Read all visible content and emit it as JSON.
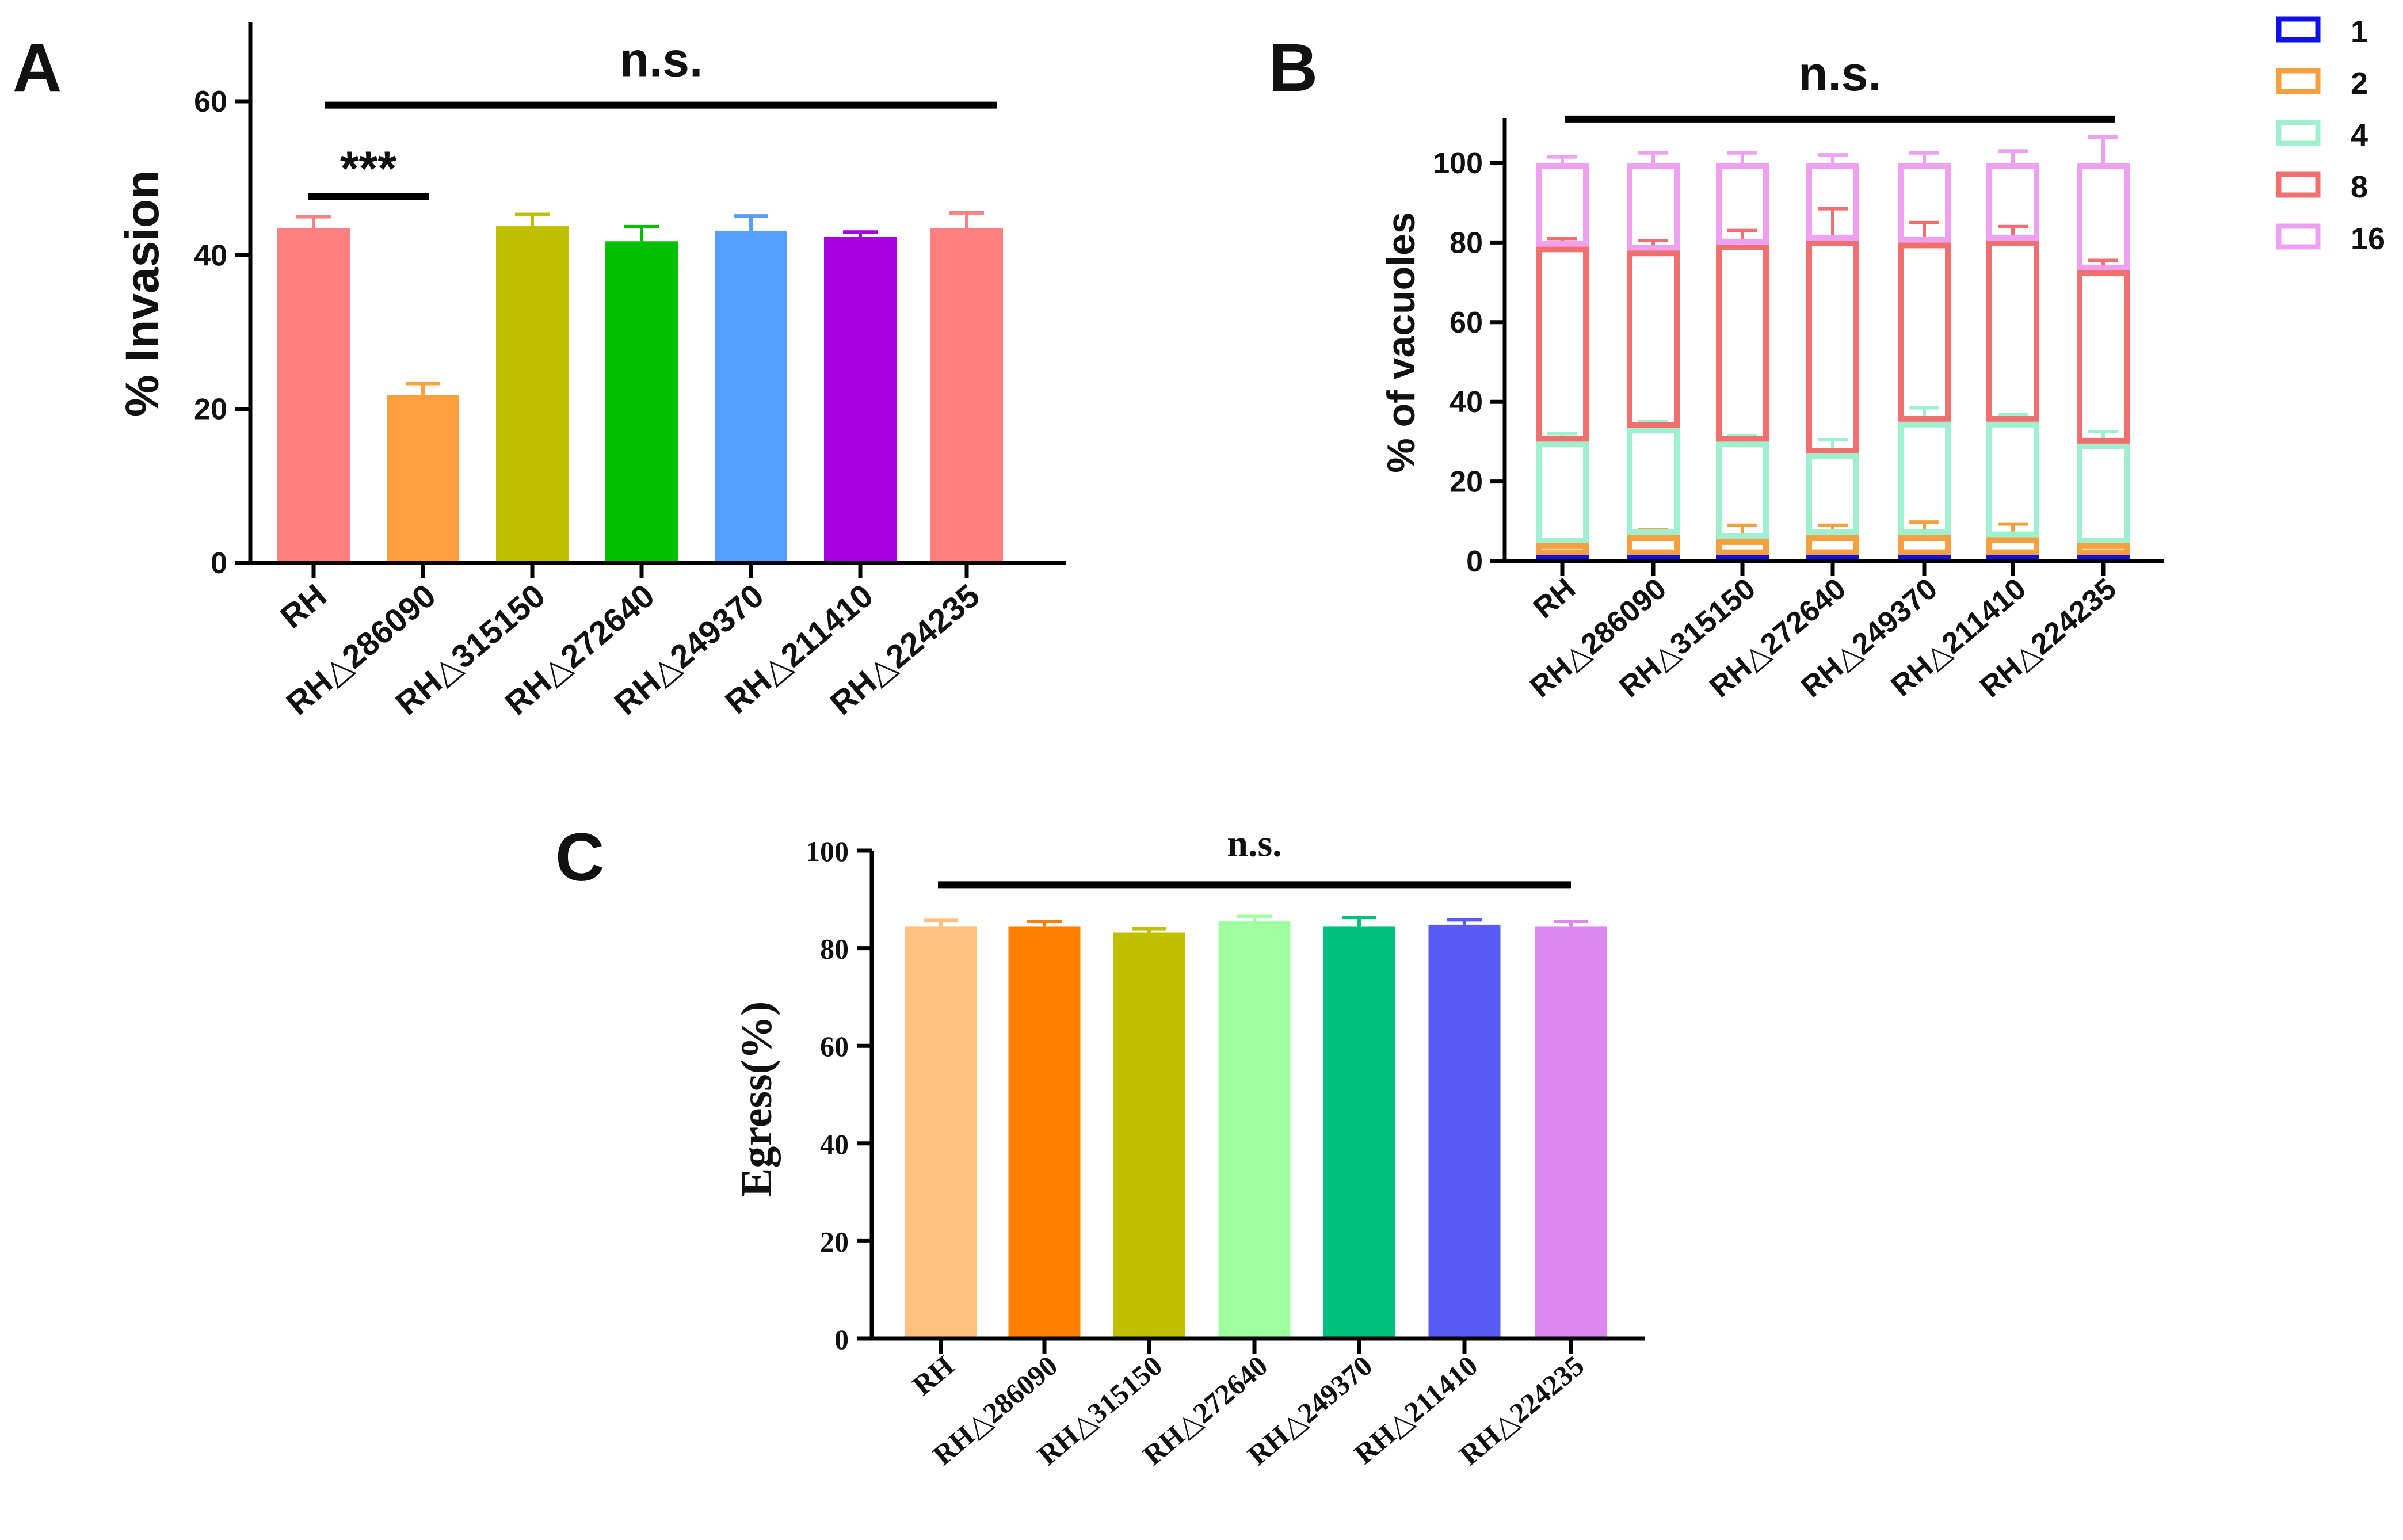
{
  "panels": {
    "A": {
      "label": "A"
    },
    "B": {
      "label": "B"
    },
    "C": {
      "label": "C"
    }
  },
  "chart_data": [
    {
      "id": "A",
      "type": "bar",
      "title": "",
      "xlabel": "",
      "ylabel": "% Invasion",
      "ylim": [
        0,
        70
      ],
      "yticks": [
        0,
        20,
        40,
        60
      ],
      "categories": [
        "RH",
        "RH△286090",
        "RH△315150",
        "RH△272640",
        "RH△249370",
        "RH△211410",
        "RH△224235"
      ],
      "values": [
        43.5,
        21.8,
        43.8,
        41.8,
        43.1,
        42.4,
        43.5
      ],
      "errors": [
        1.5,
        1.5,
        1.5,
        1.9,
        2.0,
        0.6,
        2.0
      ],
      "colors": [
        "#ff8080",
        "#ffa040",
        "#c0c000",
        "#00c000",
        "#55a0ff",
        "#a800e0",
        "#ff8080"
      ],
      "annotations": [
        {
          "text": "n.s.",
          "from": 0,
          "to": 6,
          "y": 59.5
        },
        {
          "text": "***",
          "from": 0,
          "to": 1,
          "y": 47.6
        }
      ]
    },
    {
      "id": "B",
      "type": "bar",
      "stacked": true,
      "title": "",
      "xlabel": "",
      "ylabel": "% of vacuoles",
      "ylim": [
        0,
        110
      ],
      "yticks": [
        0,
        20,
        40,
        60,
        80,
        100
      ],
      "categories": [
        "RH",
        "RH△286090",
        "RH△315150",
        "RH△272640",
        "RH△249370",
        "RH△211410",
        "RH△224235"
      ],
      "series": [
        {
          "name": "1",
          "color": "#1010e8",
          "cumulative": [
            1.5,
            1.5,
            1.5,
            1.5,
            1.5,
            1.5,
            1.5
          ],
          "errors": [
            0.8,
            0.5,
            0.8,
            0.8,
            0.8,
            0.8,
            0.8
          ]
        },
        {
          "name": "2",
          "color": "#f5a040",
          "cumulative": [
            4.5,
            6.5,
            5.5,
            6.5,
            6.5,
            6.0,
            4.5
          ],
          "errors": [
            1.0,
            1.3,
            3.5,
            2.5,
            3.3,
            3.3,
            1.0
          ]
        },
        {
          "name": "4",
          "color": "#a0f0d0",
          "cumulative": [
            30.0,
            33.5,
            30.0,
            27.0,
            35.0,
            35.0,
            29.5
          ],
          "errors": [
            2.0,
            1.5,
            1.5,
            3.5,
            3.5,
            1.8,
            3.0
          ]
        },
        {
          "name": "8",
          "color": "#f07070",
          "cumulative": [
            79.0,
            78.0,
            79.5,
            80.5,
            80.0,
            80.5,
            73.0
          ],
          "errors": [
            2.0,
            2.5,
            3.5,
            8.0,
            5.0,
            3.5,
            2.5
          ]
        },
        {
          "name": "16",
          "color": "#f0a0f0",
          "cumulative": [
            100,
            100,
            100,
            100,
            100,
            100,
            100
          ],
          "errors": [
            1.5,
            2.5,
            2.5,
            2.0,
            2.5,
            3.0,
            6.5
          ]
        }
      ],
      "legend": {
        "position": "top-right",
        "entries": [
          "1",
          "2",
          "4",
          "8",
          "16"
        ]
      },
      "annotations": [
        {
          "text": "n.s.",
          "from": 0,
          "to": 6,
          "y": 111
        }
      ]
    },
    {
      "id": "C",
      "type": "bar",
      "title": "",
      "xlabel": "",
      "ylabel": "Egress(%)",
      "ylim": [
        0,
        100
      ],
      "yticks": [
        0,
        20,
        40,
        60,
        80,
        100
      ],
      "categories": [
        "RH",
        "RH△286090",
        "RH△315150",
        "RH△272640",
        "RH△249370",
        "RH△211410",
        "RH△224235"
      ],
      "values": [
        84.5,
        84.5,
        83.2,
        85.5,
        84.5,
        84.8,
        84.5
      ],
      "errors": [
        1.2,
        1.0,
        0.8,
        1.0,
        1.8,
        1.0,
        1.0
      ],
      "colors": [
        "#ffc080",
        "#ff8000",
        "#c0c000",
        "#a0ffa0",
        "#00c080",
        "#5a5af5",
        "#dd88f0"
      ],
      "annotations": [
        {
          "text": "n.s.",
          "from": 0,
          "to": 6,
          "y": 93
        }
      ]
    }
  ]
}
